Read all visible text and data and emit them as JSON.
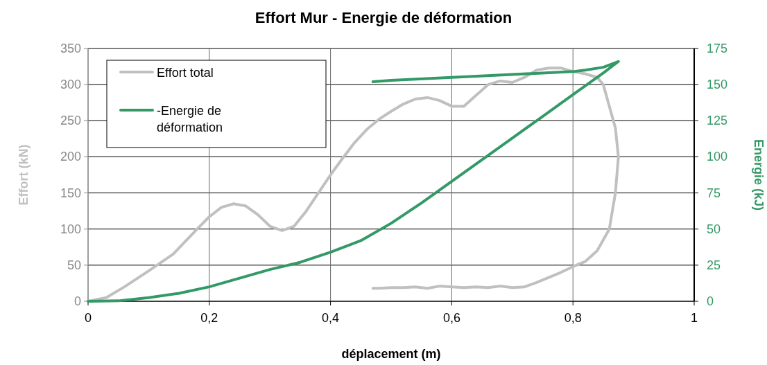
{
  "chart_data": {
    "type": "line",
    "title": "Effort Mur - Energie de déformation",
    "xlabel": "déplacement (m)",
    "ylabel": "Effort (kN)",
    "y2label": "Energie (kJ)",
    "xlim": [
      0,
      1
    ],
    "xticks": [
      0,
      {
        "value": 0.2,
        "label": "0,2"
      },
      {
        "value": 0.4,
        "label": "0,4"
      },
      {
        "value": 0.6,
        "label": "0,6"
      },
      {
        "value": 0.8,
        "label": "0,8"
      },
      1
    ],
    "ylim": [
      0,
      350
    ],
    "yticks": [
      0,
      50,
      100,
      150,
      200,
      250,
      300,
      350
    ],
    "y2lim": [
      0,
      175
    ],
    "y2ticks": [
      0,
      25,
      50,
      75,
      100,
      125,
      150,
      175
    ],
    "grid": true,
    "legend": "top left",
    "line_style": "solid",
    "series": [
      {
        "name": "Effort total",
        "color": "#c0c0c0",
        "x": [
          0,
          0.03,
          0.06,
          0.1,
          0.14,
          0.18,
          0.2,
          0.22,
          0.24,
          0.26,
          0.28,
          0.3,
          0.32,
          0.34,
          0.36,
          0.38,
          0.4,
          0.42,
          0.44,
          0.46,
          0.48,
          0.5,
          0.52,
          0.54,
          0.56,
          0.58,
          0.6,
          0.62,
          0.64,
          0.66,
          0.68,
          0.7,
          0.72,
          0.74,
          0.76,
          0.78,
          0.8,
          0.82,
          0.84,
          0.85,
          0.86,
          0.87,
          0.875,
          0.87,
          0.86,
          0.84,
          0.82,
          0.8,
          0.78,
          0.76,
          0.74,
          0.72,
          0.7,
          0.68,
          0.66,
          0.64,
          0.62,
          0.6,
          0.58,
          0.56,
          0.54,
          0.52,
          0.5,
          0.48,
          0.47
        ],
        "values": [
          0,
          5,
          20,
          42,
          65,
          100,
          117,
          130,
          135,
          132,
          120,
          104,
          98,
          104,
          125,
          150,
          175,
          198,
          220,
          238,
          252,
          263,
          273,
          280,
          282,
          278,
          270,
          270,
          285,
          300,
          305,
          303,
          310,
          320,
          323,
          323,
          318,
          315,
          310,
          300,
          270,
          240,
          200,
          150,
          100,
          70,
          55,
          48,
          40,
          33,
          26,
          20,
          19,
          21,
          19,
          20,
          19,
          20,
          21,
          18,
          20,
          19,
          19,
          18,
          18
        ]
      },
      {
        "name": "-Energie de déformation",
        "color": "#339966",
        "axis": "y2",
        "x": [
          0,
          0.05,
          0.1,
          0.15,
          0.2,
          0.25,
          0.3,
          0.35,
          0.4,
          0.45,
          0.5,
          0.55,
          0.6,
          0.65,
          0.7,
          0.75,
          0.8,
          0.85,
          0.875,
          0.85,
          0.82,
          0.8,
          0.7,
          0.6,
          0.5,
          0.47
        ],
        "values": [
          0,
          0.3,
          2.5,
          5.5,
          10,
          16,
          22,
          27,
          34,
          42,
          54,
          68,
          83,
          98,
          113,
          128,
          143,
          158,
          166,
          162,
          160,
          159,
          157,
          155,
          153,
          152
        ]
      }
    ]
  }
}
